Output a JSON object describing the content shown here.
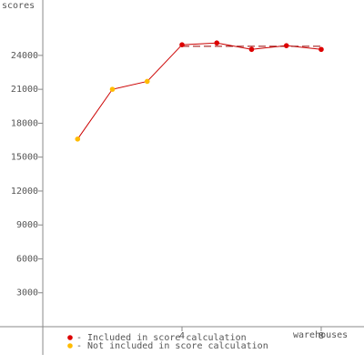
{
  "chart_data": {
    "type": "line",
    "y_label": "scores",
    "x_label": "warehouses",
    "x": [
      1,
      2,
      3,
      4,
      5,
      6,
      7,
      8
    ],
    "series": [
      {
        "name": "scores",
        "color": "#cc0000",
        "values": [
          16600,
          21000,
          21700,
          24940,
          25100,
          24530,
          24860,
          24530
        ]
      }
    ],
    "point_groups": [
      1,
      1,
      1,
      0,
      0,
      0,
      0,
      0
    ],
    "legend": [
      {
        "name": "- Included in score calculation",
        "color": "#dd0000"
      },
      {
        "name": "- Not included in score calculation",
        "color": "#ffbb00"
      }
    ],
    "score_line": {
      "value": 24800,
      "x": [
        4,
        8
      ]
    },
    "xlim": [
      -1.23,
      9.23
    ],
    "ylim": [
      -3300,
      28900
    ],
    "xticks": [
      4,
      8
    ],
    "yticks": [
      3000,
      6000,
      9000,
      12000,
      15000,
      18000,
      21000,
      24000
    ]
  }
}
